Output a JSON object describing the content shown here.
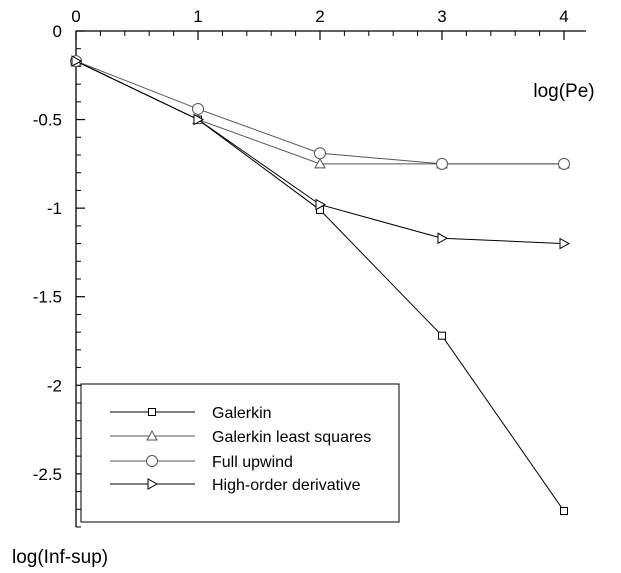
{
  "chart_data": {
    "type": "line",
    "title": "",
    "xlabel": "log(Pe)",
    "ylabel": "log(Inf-sup)",
    "x_axis_position": "top",
    "xlim": [
      0,
      4
    ],
    "ylim": [
      -2.8,
      0
    ],
    "x_ticks": [
      0,
      1,
      2,
      3,
      4
    ],
    "x_tick_labels": [
      "0",
      "1",
      "2",
      "3",
      "4"
    ],
    "y_ticks": [
      0,
      -0.5,
      -1,
      -1.5,
      -2,
      -2.5
    ],
    "y_tick_labels": [
      "0",
      "-0.5",
      "-1",
      "-1.5",
      "-2",
      "-2.5"
    ],
    "grid": false,
    "legend_position": "bottom-left",
    "series": [
      {
        "name": "Galerkin",
        "marker": "square",
        "color": "#000000",
        "x": [
          0,
          1,
          2,
          3,
          4
        ],
        "y": [
          -0.17,
          -0.5,
          -1.01,
          -1.72,
          -2.71
        ]
      },
      {
        "name": "Galerkin least squares",
        "marker": "triangle-up",
        "color": "#555555",
        "x": [
          0,
          1,
          2,
          3,
          4
        ],
        "y": [
          -0.17,
          -0.5,
          -0.75,
          -0.75,
          -0.75
        ]
      },
      {
        "name": "Full upwind",
        "marker": "circle",
        "color": "#555555",
        "x": [
          0,
          1,
          2,
          3,
          4
        ],
        "y": [
          -0.17,
          -0.44,
          -0.69,
          -0.75,
          -0.75
        ]
      },
      {
        "name": "High-order derivative",
        "marker": "triangle-right",
        "color": "#000000",
        "x": [
          0,
          1,
          2,
          3,
          4
        ],
        "y": [
          -0.17,
          -0.5,
          -0.98,
          -1.17,
          -1.2
        ]
      }
    ]
  }
}
